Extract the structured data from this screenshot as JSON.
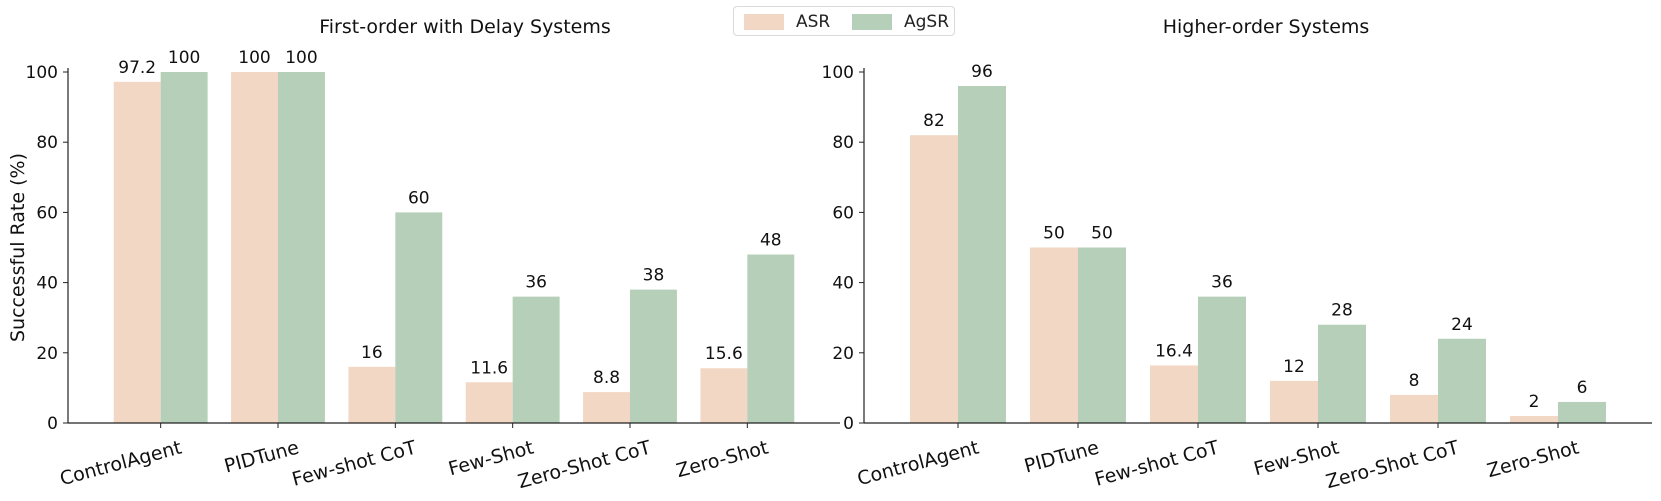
{
  "colors": {
    "ASR": "#f2d7c4",
    "AgSR": "#b5cfb8"
  },
  "legend": {
    "asr": "ASR",
    "agsr": "AgSR"
  },
  "chart_data": [
    {
      "type": "bar",
      "title": "First-order with Delay Systems",
      "ylabel": "Successful Rate (%)",
      "xlabel": "",
      "ylim": [
        0,
        100
      ],
      "yticks": [
        0,
        20,
        40,
        60,
        80,
        100
      ],
      "categories": [
        "ControlAgent",
        "PIDTune",
        "Few-shot CoT",
        "Few-Shot",
        "Zero-Shot CoT",
        "Zero-Shot"
      ],
      "series": [
        {
          "name": "ASR",
          "values": [
            97.2,
            100,
            16,
            11.6,
            8.8,
            15.6
          ]
        },
        {
          "name": "AgSR",
          "values": [
            100,
            100,
            60,
            36,
            38,
            48
          ]
        }
      ]
    },
    {
      "type": "bar",
      "title": "Higher-order Systems",
      "ylabel": "",
      "xlabel": "",
      "ylim": [
        0,
        100
      ],
      "yticks": [
        0,
        20,
        40,
        60,
        80,
        100
      ],
      "categories": [
        "ControlAgent",
        "PIDTune",
        "Few-shot CoT",
        "Few-Shot",
        "Zero-Shot CoT",
        "Zero-Shot"
      ],
      "series": [
        {
          "name": "ASR",
          "values": [
            82,
            50,
            16.4,
            12,
            8,
            2
          ]
        },
        {
          "name": "AgSR",
          "values": [
            96,
            50,
            36,
            28,
            24,
            6
          ]
        }
      ]
    }
  ]
}
